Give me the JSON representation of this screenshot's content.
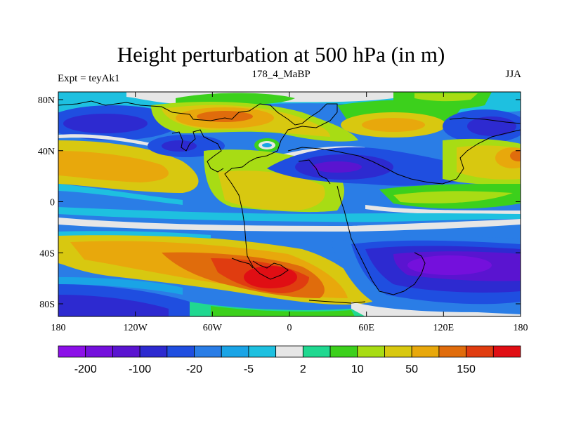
{
  "chart_data": {
    "type": "heatmap",
    "title": "Height perturbation at 500 hPa (in m)",
    "left_label": "Expt = teyAk1",
    "center_label": "178_4_MaBP",
    "right_label": "JJA",
    "x_ticks": [
      "180",
      "120W",
      "60W",
      "0",
      "60E",
      "120E",
      "180"
    ],
    "y_ticks": [
      "80N",
      "40N",
      "0",
      "40S",
      "80S"
    ],
    "xlim": [
      -180,
      180
    ],
    "ylim": [
      -90,
      90
    ],
    "colorbar": {
      "colors": [
        "#8c10e8",
        "#7410dc",
        "#5a14d0",
        "#2d2ad0",
        "#1f4ee0",
        "#2a7de6",
        "#1aa4e6",
        "#1ec0e0",
        "#e6e6e6",
        "#20d890",
        "#3cd01c",
        "#a8dc14",
        "#d8c810",
        "#e8a80c",
        "#e06c0c",
        "#e03c10",
        "#e00e14"
      ],
      "labels": [
        "-200",
        "-100",
        "-20",
        "-5",
        "2",
        "10",
        "50",
        "150"
      ]
    }
  }
}
